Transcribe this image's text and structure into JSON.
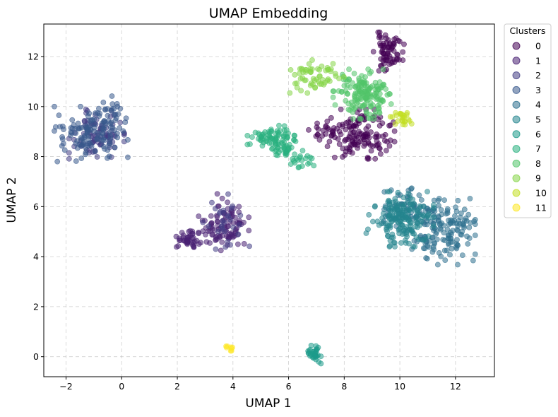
{
  "chart_data": {
    "type": "scatter",
    "title": "UMAP Embedding",
    "xlabel": "UMAP 1",
    "ylabel": "UMAP 2",
    "xlim": [
      -2.8,
      13.4
    ],
    "ylim": [
      -0.8,
      13.3
    ],
    "xticks": [
      -2,
      0,
      2,
      4,
      6,
      8,
      10,
      12
    ],
    "yticks": [
      0,
      2,
      4,
      6,
      8,
      10,
      12
    ],
    "grid": true,
    "legend": {
      "title": "Clusters",
      "placement": "outside-right-top"
    },
    "colormap": "viridis",
    "clusters": [
      {
        "name": "0",
        "color": "#440154",
        "regions": [
          {
            "cx": 9.6,
            "cy": 12.2,
            "sx": 0.25,
            "sy": 0.35,
            "n": 70,
            "seed": 11
          },
          {
            "cx": 8.6,
            "cy": 8.9,
            "sx": 0.55,
            "sy": 0.45,
            "n": 130,
            "seed": 12
          },
          {
            "cx": 7.3,
            "cy": 9.0,
            "sx": 0.4,
            "sy": 0.15,
            "n": 25,
            "seed": 13
          }
        ]
      },
      {
        "name": "1",
        "color": "#482173",
        "regions": [
          {
            "cx": 3.8,
            "cy": 5.3,
            "sx": 0.35,
            "sy": 0.55,
            "n": 70,
            "seed": 21
          },
          {
            "cx": 2.4,
            "cy": 4.7,
            "sx": 0.2,
            "sy": 0.15,
            "n": 40,
            "seed": 22
          },
          {
            "cx": 3.1,
            "cy": 5.0,
            "sx": 0.4,
            "sy": 0.3,
            "n": 30,
            "seed": 23
          }
        ]
      },
      {
        "name": "2",
        "color": "#433e85",
        "regions": [
          {
            "cx": -0.9,
            "cy": 8.9,
            "sx": 0.45,
            "sy": 0.45,
            "n": 90,
            "seed": 31
          },
          {
            "cx": 3.8,
            "cy": 5.4,
            "sx": 0.4,
            "sy": 0.5,
            "n": 30,
            "seed": 32
          }
        ]
      },
      {
        "name": "3",
        "color": "#38598c",
        "regions": [
          {
            "cx": -1.1,
            "cy": 8.9,
            "sx": 0.6,
            "sy": 0.5,
            "n": 110,
            "seed": 41
          },
          {
            "cx": -0.5,
            "cy": 9.8,
            "sx": 0.3,
            "sy": 0.3,
            "n": 30,
            "seed": 42
          }
        ]
      },
      {
        "name": "4",
        "color": "#2d708e",
        "regions": [
          {
            "cx": 11.5,
            "cy": 5.0,
            "sx": 0.55,
            "sy": 0.6,
            "n": 150,
            "seed": 51
          },
          {
            "cx": 10.5,
            "cy": 6.0,
            "sx": 0.5,
            "sy": 0.4,
            "n": 60,
            "seed": 52
          }
        ]
      },
      {
        "name": "5",
        "color": "#25858e",
        "regions": [
          {
            "cx": 10.0,
            "cy": 5.5,
            "sx": 0.55,
            "sy": 0.5,
            "n": 180,
            "seed": 61
          }
        ]
      },
      {
        "name": "6",
        "color": "#1e9b8a",
        "regions": [
          {
            "cx": 6.9,
            "cy": 0.15,
            "sx": 0.12,
            "sy": 0.2,
            "n": 35,
            "seed": 71
          }
        ]
      },
      {
        "name": "7",
        "color": "#2ab07f",
        "regions": [
          {
            "cx": 5.4,
            "cy": 8.8,
            "sx": 0.4,
            "sy": 0.2,
            "n": 70,
            "seed": 81
          },
          {
            "cx": 5.8,
            "cy": 8.3,
            "sx": 0.3,
            "sy": 0.15,
            "n": 30,
            "seed": 82
          },
          {
            "cx": 6.5,
            "cy": 7.8,
            "sx": 0.2,
            "sy": 0.2,
            "n": 20,
            "seed": 83
          }
        ]
      },
      {
        "name": "8",
        "color": "#52c569",
        "regions": [
          {
            "cx": 8.7,
            "cy": 10.5,
            "sx": 0.5,
            "sy": 0.45,
            "n": 160,
            "seed": 91
          }
        ]
      },
      {
        "name": "9",
        "color": "#86d549",
        "regions": [
          {
            "cx": 7.0,
            "cy": 11.2,
            "sx": 0.45,
            "sy": 0.3,
            "n": 60,
            "seed": 101
          }
        ]
      },
      {
        "name": "10",
        "color": "#c2df23",
        "regions": [
          {
            "cx": 10.1,
            "cy": 9.6,
            "sx": 0.2,
            "sy": 0.15,
            "n": 25,
            "seed": 111
          }
        ]
      },
      {
        "name": "11",
        "color": "#fde725",
        "regions": [
          {
            "cx": 3.85,
            "cy": 0.4,
            "sx": 0.06,
            "sy": 0.12,
            "n": 8,
            "seed": 121
          }
        ]
      }
    ]
  }
}
